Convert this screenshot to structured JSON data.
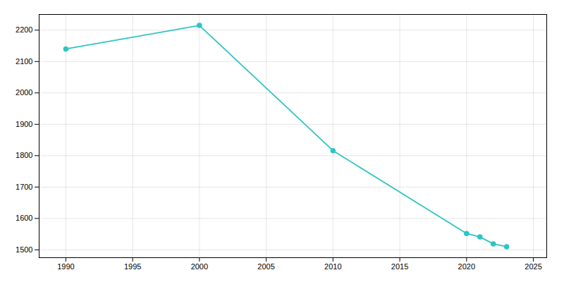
{
  "chart_data": {
    "type": "line",
    "x": [
      1990,
      2000,
      2010,
      2020,
      2021,
      2022,
      2023
    ],
    "values": [
      2140,
      2215,
      1816,
      1552,
      1541,
      1519,
      1510
    ],
    "color": "#2ec4c4",
    "marker": "circle",
    "xlim": [
      1988,
      2026
    ],
    "ylim": [
      1475,
      2250
    ],
    "xticks": [
      1990,
      1995,
      2000,
      2005,
      2010,
      2015,
      2020,
      2025
    ],
    "yticks": [
      1500,
      1600,
      1700,
      1800,
      1900,
      2000,
      2100,
      2200
    ],
    "grid": true
  }
}
